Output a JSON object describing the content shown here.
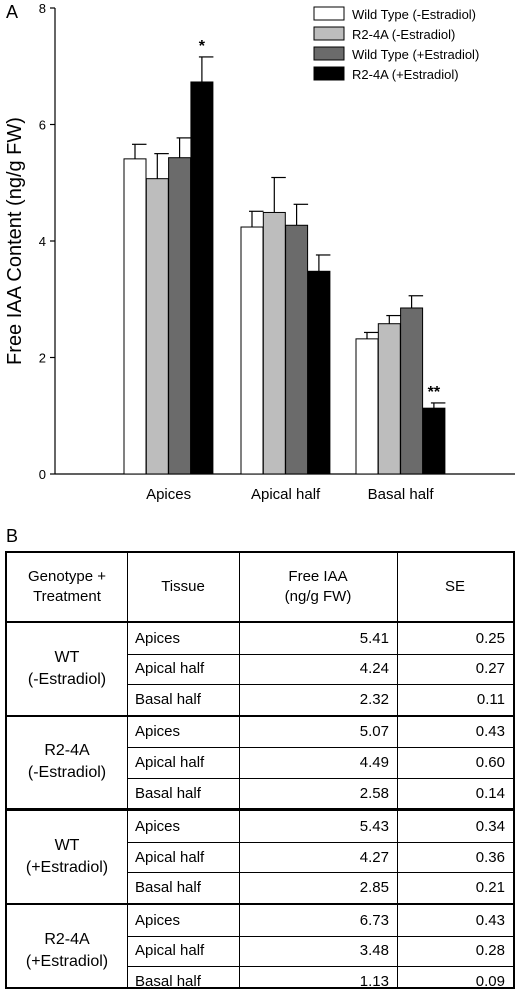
{
  "panel_a_label": "A",
  "panel_b_label": "B",
  "chart_data": {
    "type": "bar",
    "categories": [
      "Apices",
      "Apical half",
      "Basal half"
    ],
    "series": [
      {
        "name": "Wild Type (-Estradiol)",
        "values": [
          5.41,
          4.24,
          2.32
        ],
        "errors": [
          0.25,
          0.27,
          0.11
        ],
        "color": "#ffffff"
      },
      {
        "name": "R2-4A  (-Estradiol)",
        "values": [
          5.07,
          4.49,
          2.58
        ],
        "errors": [
          0.43,
          0.6,
          0.14
        ],
        "color": "#bdbdbd"
      },
      {
        "name": "Wild Type (+Estradiol)",
        "values": [
          5.43,
          4.27,
          2.85
        ],
        "errors": [
          0.34,
          0.36,
          0.21
        ],
        "color": "#6b6b6b"
      },
      {
        "name": "R2-4A  (+Estradiol)",
        "values": [
          6.73,
          3.48,
          1.13
        ],
        "errors": [
          0.43,
          0.28,
          0.09
        ],
        "color": "#000000"
      }
    ],
    "annotations": [
      {
        "category": "Apices",
        "series": 3,
        "text": "*"
      },
      {
        "category": "Basal half",
        "series": 3,
        "text": "**"
      }
    ],
    "ylabel": "Free IAA Content (ng/g FW)",
    "ylim": [
      0,
      8
    ],
    "yticks": [
      0,
      2,
      4,
      6,
      8
    ],
    "legend": "top-right"
  },
  "table": {
    "headers": [
      "Genotype +\nTreatment",
      "Tissue",
      "Free IAA\n(ng/g FW)",
      "SE"
    ],
    "groups": [
      {
        "label": "WT\n(-Estradiol)",
        "rows": [
          {
            "tissue": "Apices",
            "iaa": "5.41",
            "se": "0.25"
          },
          {
            "tissue": "Apical half",
            "iaa": "4.24",
            "se": "0.27"
          },
          {
            "tissue": "Basal half",
            "iaa": "2.32",
            "se": "0.11"
          }
        ]
      },
      {
        "label": "R2-4A\n(-Estradiol)",
        "rows": [
          {
            "tissue": "Apices",
            "iaa": "5.07",
            "se": "0.43"
          },
          {
            "tissue": "Apical half",
            "iaa": "4.49",
            "se": "0.60"
          },
          {
            "tissue": "Basal half",
            "iaa": "2.58",
            "se": "0.14"
          }
        ]
      },
      {
        "label": "WT\n(+Estradiol)",
        "rows": [
          {
            "tissue": "Apices",
            "iaa": "5.43",
            "se": "0.34"
          },
          {
            "tissue": "Apical half",
            "iaa": "4.27",
            "se": "0.36"
          },
          {
            "tissue": "Basal half",
            "iaa": "2.85",
            "se": "0.21"
          }
        ]
      },
      {
        "label": "R2-4A\n(+Estradiol)",
        "rows": [
          {
            "tissue": "Apices",
            "iaa": "6.73",
            "se": "0.43"
          },
          {
            "tissue": "Apical half",
            "iaa": "3.48",
            "se": "0.28"
          },
          {
            "tissue": "Basal half",
            "iaa": "1.13",
            "se": "0.09"
          }
        ]
      }
    ]
  }
}
